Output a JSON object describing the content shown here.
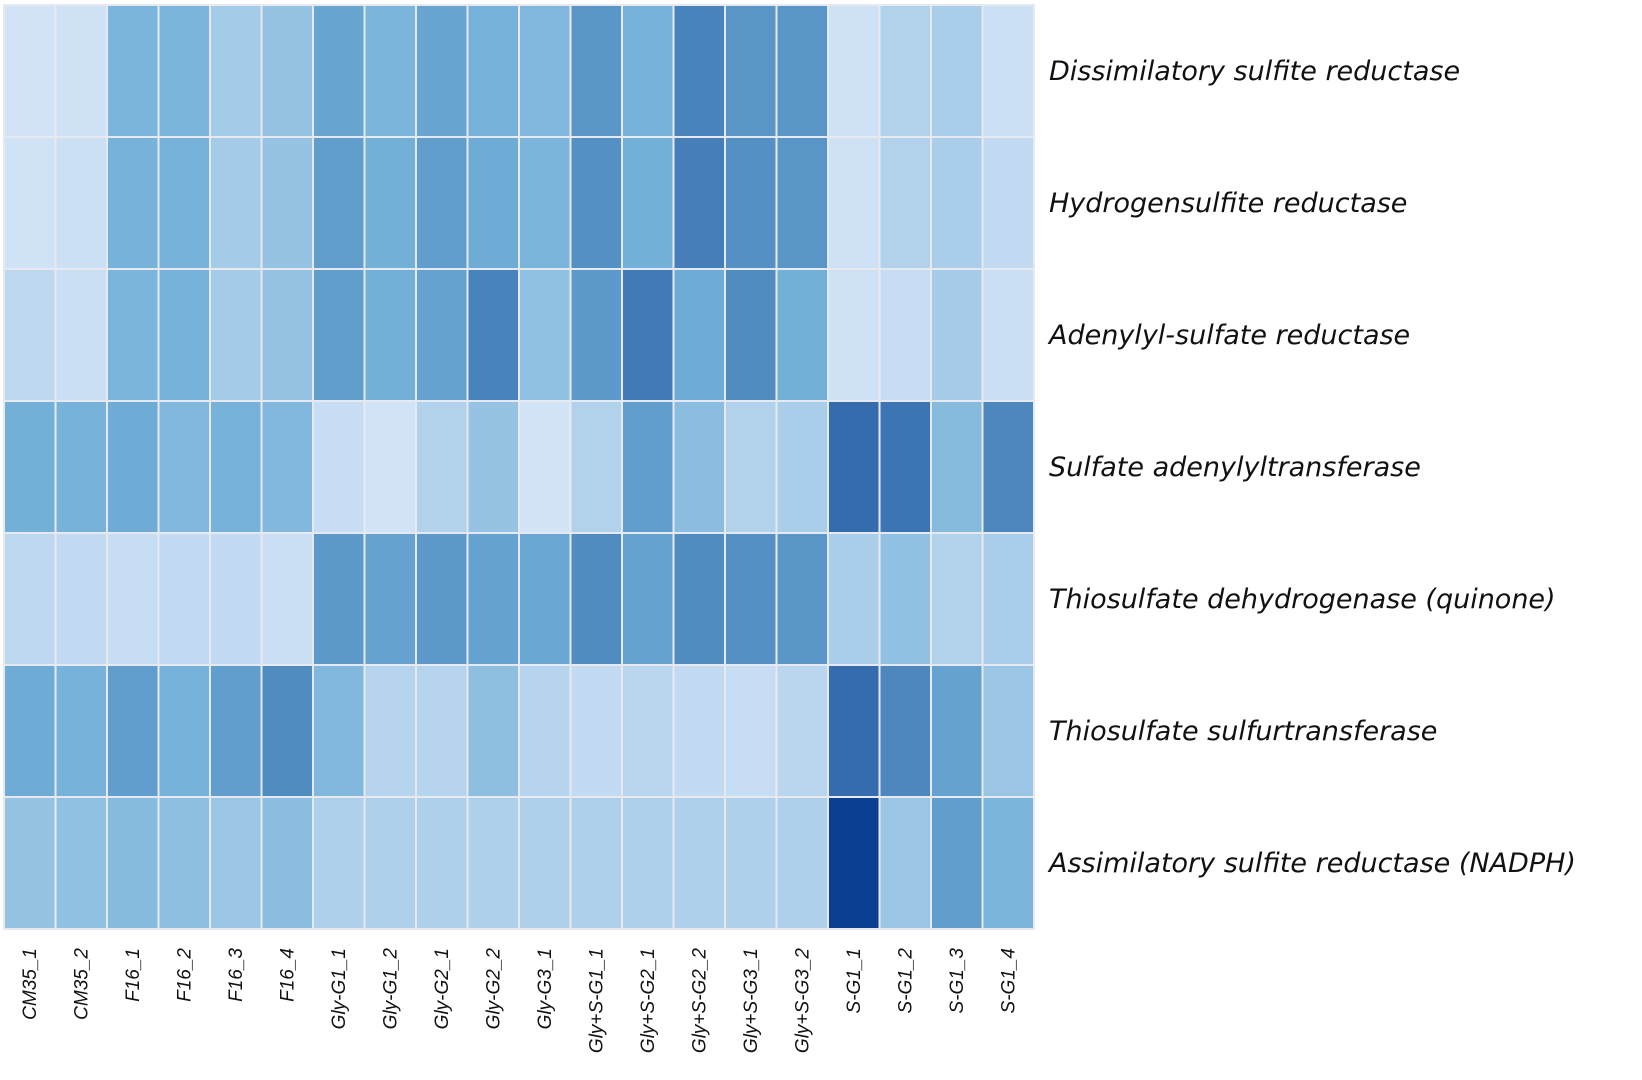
{
  "chart_data": {
    "type": "heatmap",
    "title": "",
    "xlabel": "",
    "ylabel": "",
    "value_range": [
      0,
      1
    ],
    "colors": {
      "low": "#d6e5f8",
      "mid": "#72b0d8",
      "high": "#0b3f91",
      "gridline": "#e6eaf0"
    },
    "columns": [
      "CM35_1",
      "CM35_2",
      "F16_1",
      "F16_2",
      "F16_3",
      "F16_4",
      "Gly-G1_1",
      "Gly-G1_2",
      "Gly-G2_1",
      "Gly-G2_2",
      "Gly-G3_1",
      "Gly+S-G1_1",
      "Gly+S-G2_1",
      "Gly+S-G2_2",
      "Gly+S-G3_1",
      "Gly+S-G3_2",
      "S-G1_1",
      "S-G1_2",
      "S-G1_3",
      "S-G1_4"
    ],
    "rows": [
      "Dissimilatory sulfite reductase",
      "Hydrogensulfite reductase",
      "Adenylyl-sulfate reductase",
      "Sulfate adenylyltransferase",
      "Thiosulfate dehydrogenase (quinone)",
      "Thiosulfate sulfurtransferase",
      "Assimilatory sulfite reductase (NADPH)"
    ],
    "values": [
      [
        0.02,
        0.04,
        0.45,
        0.45,
        0.25,
        0.32,
        0.55,
        0.45,
        0.55,
        0.48,
        0.42,
        0.62,
        0.48,
        0.7,
        0.62,
        0.62,
        0.04,
        0.18,
        0.22,
        0.05
      ],
      [
        0.03,
        0.05,
        0.48,
        0.48,
        0.25,
        0.32,
        0.58,
        0.5,
        0.58,
        0.52,
        0.45,
        0.64,
        0.5,
        0.72,
        0.64,
        0.62,
        0.04,
        0.18,
        0.22,
        0.1
      ],
      [
        0.12,
        0.06,
        0.45,
        0.48,
        0.25,
        0.32,
        0.58,
        0.5,
        0.56,
        0.7,
        0.35,
        0.6,
        0.74,
        0.52,
        0.66,
        0.5,
        0.04,
        0.08,
        0.24,
        0.06
      ],
      [
        0.5,
        0.48,
        0.52,
        0.42,
        0.48,
        0.42,
        0.08,
        0.02,
        0.18,
        0.32,
        0.01,
        0.18,
        0.58,
        0.38,
        0.18,
        0.22,
        0.8,
        0.76,
        0.4,
        0.68
      ],
      [
        0.12,
        0.1,
        0.08,
        0.1,
        0.1,
        0.06,
        0.6,
        0.56,
        0.6,
        0.56,
        0.54,
        0.66,
        0.56,
        0.66,
        0.64,
        0.62,
        0.22,
        0.35,
        0.18,
        0.22
      ],
      [
        0.52,
        0.48,
        0.58,
        0.48,
        0.58,
        0.66,
        0.42,
        0.16,
        0.16,
        0.36,
        0.16,
        0.1,
        0.14,
        0.1,
        0.08,
        0.14,
        0.8,
        0.68,
        0.56,
        0.3
      ],
      [
        0.32,
        0.35,
        0.4,
        0.36,
        0.3,
        0.38,
        0.2,
        0.2,
        0.2,
        0.2,
        0.2,
        0.2,
        0.2,
        0.2,
        0.2,
        0.2,
        1.0,
        0.3,
        0.58,
        0.45
      ]
    ]
  }
}
